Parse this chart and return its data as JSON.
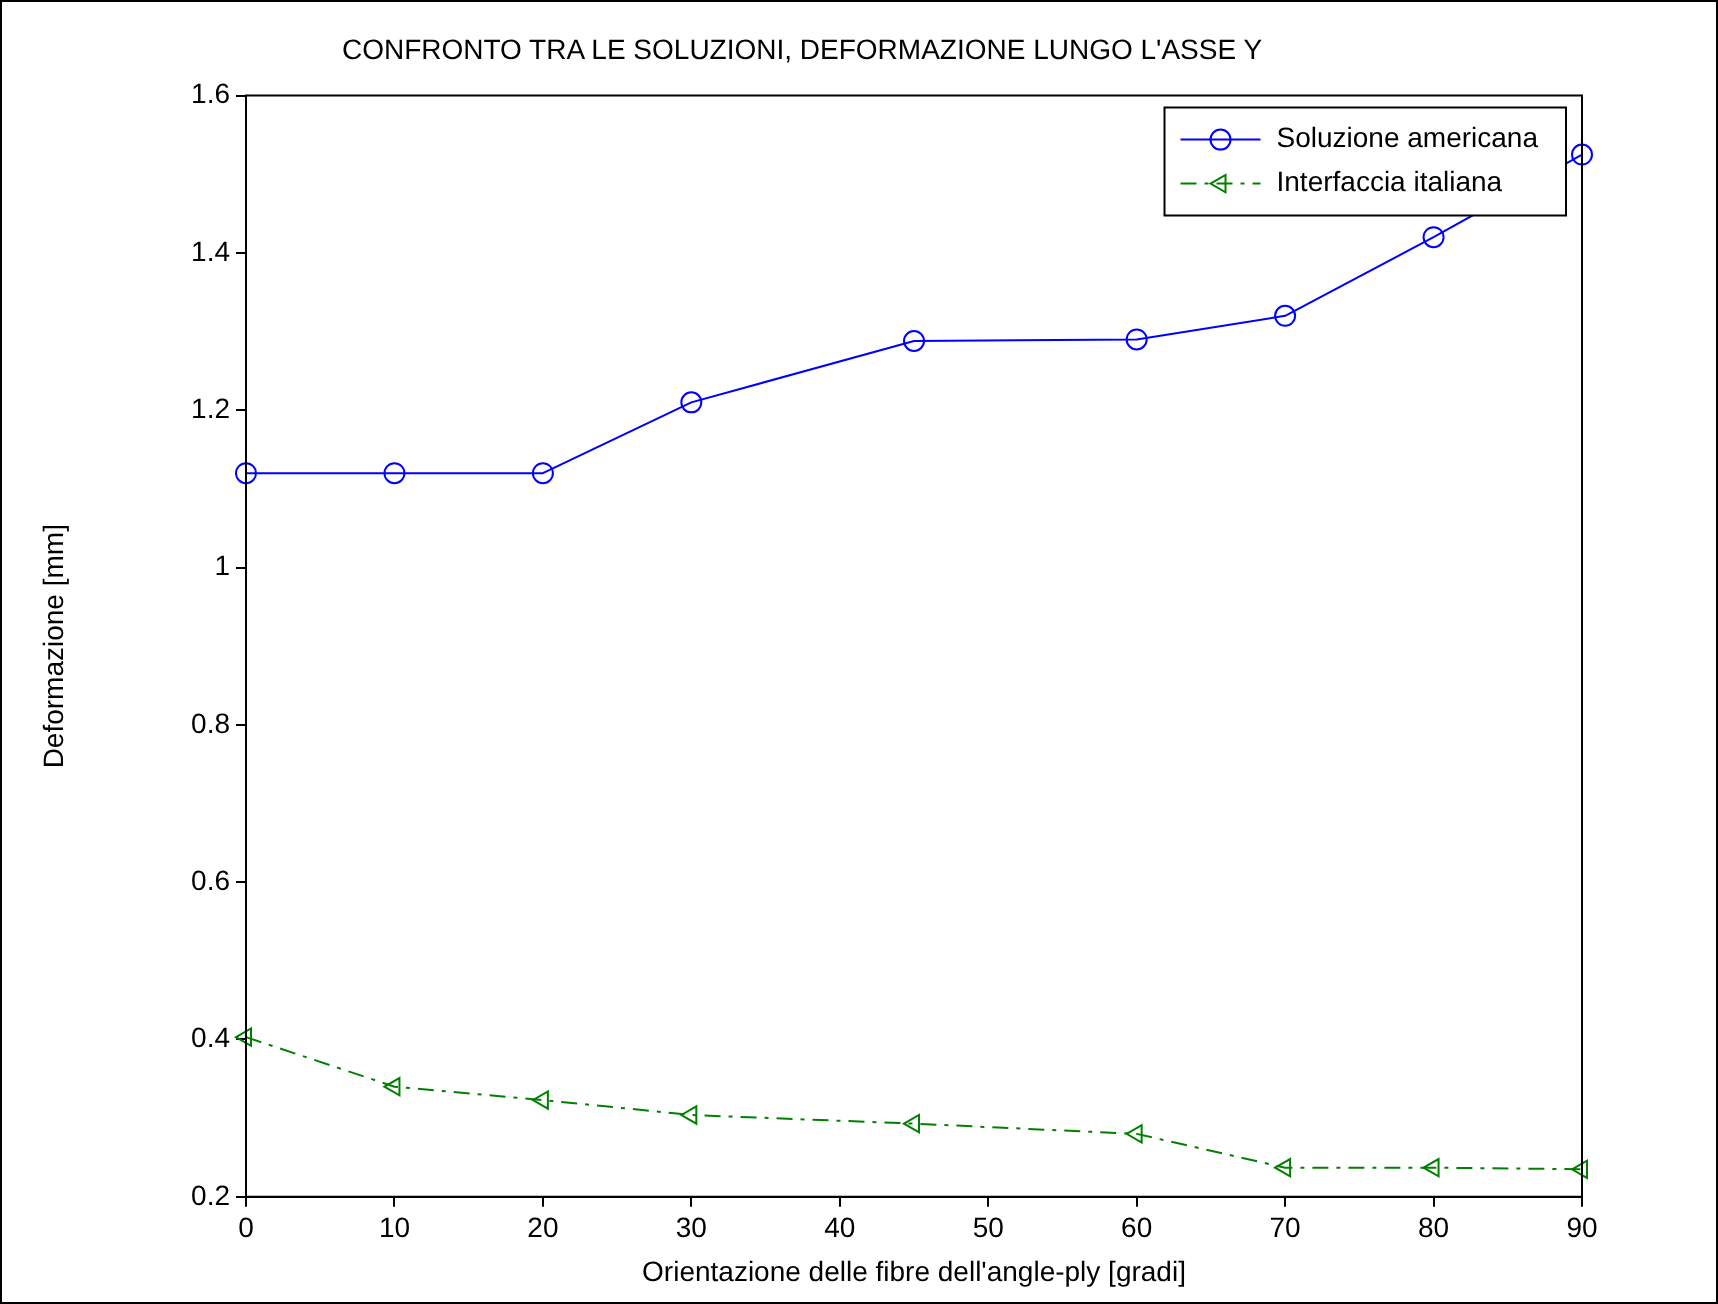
{
  "chart_data": {
    "type": "line",
    "title": "CONFRONTO TRA LE SOLUZIONI, DEFORMAZIONE LUNGO L'ASSE Y",
    "xlabel": "Orientazione delle fibre dell'angle-ply [gradi]",
    "ylabel": "Deformazione [mm]",
    "x": [
      0,
      10,
      20,
      30,
      45,
      60,
      70,
      80,
      90
    ],
    "series": [
      {
        "name": "Soluzione americana",
        "color": "#0000ff",
        "marker": "circle",
        "line_style": "solid",
        "values": [
          1.12,
          1.12,
          1.12,
          1.21,
          1.288,
          1.29,
          1.32,
          1.42,
          1.525
        ]
      },
      {
        "name": "Interfaccia italiana",
        "color": "#008000",
        "marker": "triangle",
        "line_style": "dashed",
        "values": [
          0.403,
          0.34,
          0.323,
          0.304,
          0.293,
          0.28,
          0.237,
          0.237,
          0.235
        ]
      }
    ],
    "xlim": [
      0,
      90
    ],
    "xticks": [
      0,
      10,
      20,
      30,
      40,
      50,
      60,
      70,
      80,
      90
    ],
    "ylim": [
      0.2,
      1.6
    ],
    "yticks": [
      0.2,
      0.4,
      0.6,
      0.8,
      1,
      1.2,
      1.4,
      1.6
    ],
    "grid": false,
    "legend": "top right"
  }
}
